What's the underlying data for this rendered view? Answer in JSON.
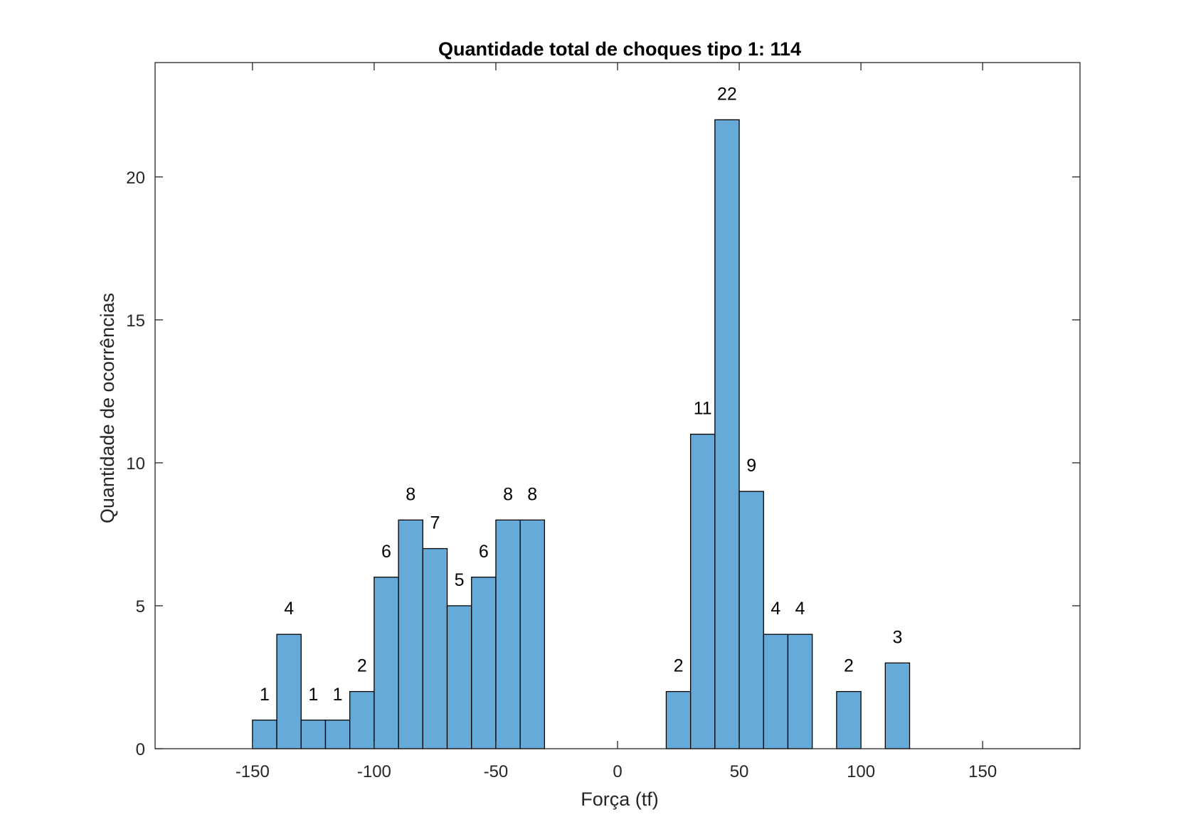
{
  "chart_data": {
    "type": "bar",
    "title": "Quantidade total de choques tipo 1: 114",
    "xlabel": "Força (tf)",
    "ylabel": "Quantidade de ocorrências",
    "xlim": [
      -190,
      190
    ],
    "ylim": [
      0,
      24
    ],
    "xticks": [
      -150,
      -100,
      -50,
      0,
      50,
      100,
      150
    ],
    "xtick_labels": [
      "-150",
      "-100",
      "-50",
      "0",
      "50",
      "100",
      "150"
    ],
    "yticks": [
      0,
      5,
      10,
      15,
      20
    ],
    "ytick_labels": [
      "0",
      "5",
      "10",
      "15",
      "20"
    ],
    "bin_width": 10,
    "bins": [
      {
        "x0": -150,
        "x1": -140,
        "count": 1
      },
      {
        "x0": -140,
        "x1": -130,
        "count": 4
      },
      {
        "x0": -130,
        "x1": -120,
        "count": 1
      },
      {
        "x0": -120,
        "x1": -110,
        "count": 1
      },
      {
        "x0": -110,
        "x1": -100,
        "count": 2
      },
      {
        "x0": -100,
        "x1": -90,
        "count": 6
      },
      {
        "x0": -90,
        "x1": -80,
        "count": 8
      },
      {
        "x0": -80,
        "x1": -70,
        "count": 7
      },
      {
        "x0": -70,
        "x1": -60,
        "count": 5
      },
      {
        "x0": -60,
        "x1": -50,
        "count": 6
      },
      {
        "x0": -50,
        "x1": -40,
        "count": 8
      },
      {
        "x0": -40,
        "x1": -30,
        "count": 8
      },
      {
        "x0": 20,
        "x1": 30,
        "count": 2
      },
      {
        "x0": 30,
        "x1": 40,
        "count": 11
      },
      {
        "x0": 40,
        "x1": 50,
        "count": 22
      },
      {
        "x0": 50,
        "x1": 60,
        "count": 9
      },
      {
        "x0": 60,
        "x1": 70,
        "count": 4
      },
      {
        "x0": 70,
        "x1": 80,
        "count": 4
      },
      {
        "x0": 90,
        "x1": 100,
        "count": 2
      },
      {
        "x0": 110,
        "x1": 120,
        "count": 3
      }
    ],
    "bar_color": "#66AADA",
    "edge_color": "#000000",
    "grid": false,
    "legend": "none"
  }
}
